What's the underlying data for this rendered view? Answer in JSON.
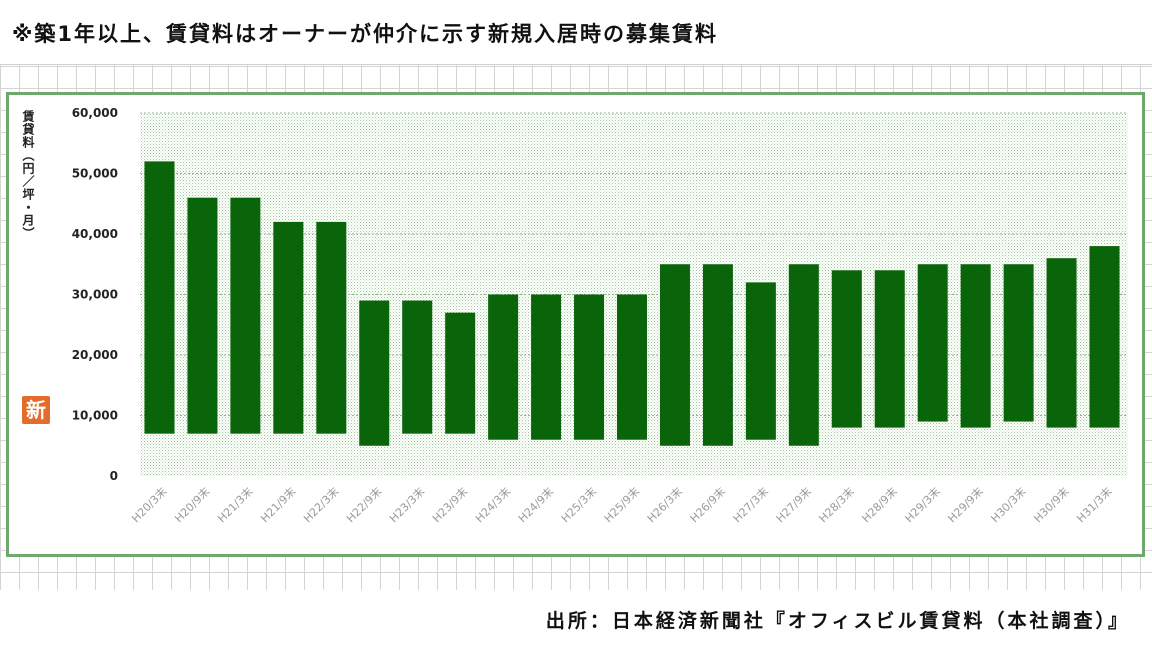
{
  "note": "※築1年以上、賃貸料はオーナーが仲介に示す新規入居時の募集賃料",
  "source": "出所：日本経済新聞社『オフィスビル賃貸料（本社調査）』",
  "logo_text": "新",
  "colors": {
    "bar": "#0a640a",
    "frame": "#6ea86a",
    "plot_dots": "#9fc79a"
  },
  "chart_data": {
    "type": "bar",
    "title": "",
    "xlabel": "",
    "ylabel": "賃貸料（円／坪・月）",
    "ylim": [
      0,
      60000
    ],
    "yticks": [
      0,
      10000,
      20000,
      30000,
      40000,
      50000,
      60000
    ],
    "ytick_labels": [
      "0",
      "10,000",
      "20,000",
      "30,000",
      "40,000",
      "50,000",
      "60,000"
    ],
    "grid": true,
    "categories": [
      "H20/3末",
      "H20/9末",
      "H21/3末",
      "H21/9末",
      "H22/3末",
      "H22/9末",
      "H23/3末",
      "H23/9末",
      "H24/3末",
      "H24/9末",
      "H25/3末",
      "H25/9末",
      "H26/3末",
      "H26/9末",
      "H27/3末",
      "H27/9末",
      "H28/3末",
      "H28/9末",
      "H29/3末",
      "H29/9末",
      "H30/3末",
      "H30/9末",
      "H31/3末"
    ],
    "series": [
      {
        "low": [
          7000,
          7000,
          7000,
          7000,
          7000,
          5000,
          7000,
          7000,
          6000,
          6000,
          6000,
          6000,
          5000,
          5000,
          6000,
          5000,
          8000,
          8000,
          9000,
          8000,
          9000,
          8000,
          8000
        ],
        "high": [
          52000,
          46000,
          46000,
          42000,
          42000,
          29000,
          29000,
          27000,
          30000,
          30000,
          30000,
          30000,
          35000,
          35000,
          32000,
          35000,
          34000,
          34000,
          35000,
          35000,
          35000,
          36000,
          38000
        ]
      }
    ]
  }
}
